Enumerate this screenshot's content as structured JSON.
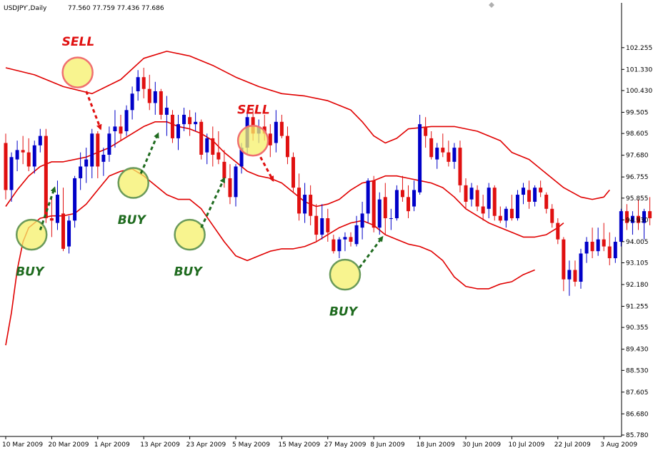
{
  "window": {
    "symbol_label": "USDJPY′,Daily",
    "ohlc_label": "77.560 77.759 77.436 77.686"
  },
  "colors": {
    "bull": "#0000c8",
    "bear": "#e01010",
    "band": "#e00000",
    "buy_text": "#1f6b1f",
    "sell_text": "#e01010",
    "highlight_fill": "#f5f06a",
    "highlight_buy_stroke": "#6a9a5a",
    "highlight_sell_stroke": "#f07070"
  },
  "chart_data": {
    "type": "candlestick",
    "indicator": "bollinger_bands",
    "ylim": [
      85.78,
      103.25
    ],
    "y_ticks": [
      "102.255",
      "101.330",
      "100.430",
      "99.505",
      "98.605",
      "97.680",
      "96.755",
      "95.855",
      "94.930",
      "94.005",
      "93.105",
      "92.180",
      "91.255",
      "90.355",
      "89.430",
      "88.530",
      "87.605",
      "86.680",
      "85.780"
    ],
    "x_ticks": [
      "10 Mar 2009",
      "20 Mar 2009",
      "1 Apr 2009",
      "13 Apr 2009",
      "23 Apr 2009",
      "5 May 2009",
      "15 May 2009",
      "27 May 2009",
      "8 Jun 2009",
      "18 Jun 2009",
      "30 Jun 2009",
      "10 Jul 2009",
      "22 Jul 2009",
      "3 Aug 2009"
    ],
    "x_tick_index": [
      0,
      8,
      16,
      24,
      32,
      40,
      48,
      56,
      64,
      72,
      80,
      88,
      96,
      104
    ],
    "candles": [
      [
        98.2,
        98.6,
        95.8,
        96.2
      ],
      [
        96.2,
        97.8,
        95.7,
        97.6
      ],
      [
        97.5,
        98.3,
        97.0,
        97.9
      ],
      [
        97.9,
        98.5,
        97.3,
        97.8
      ],
      [
        97.8,
        98.4,
        97.0,
        97.2
      ],
      [
        97.2,
        98.3,
        96.9,
        98.1
      ],
      [
        98.1,
        98.8,
        97.8,
        98.5
      ],
      [
        98.5,
        98.8,
        94.8,
        95.0
      ],
      [
        95.0,
        95.9,
        94.2,
        94.9
      ],
      [
        94.8,
        96.6,
        94.5,
        96.0
      ],
      [
        95.2,
        96.3,
        93.6,
        93.7
      ],
      [
        93.8,
        95.1,
        93.5,
        94.9
      ],
      [
        94.9,
        96.8,
        94.6,
        96.7
      ],
      [
        96.7,
        97.8,
        96.2,
        97.2
      ],
      [
        97.2,
        98.0,
        96.5,
        97.5
      ],
      [
        97.2,
        98.8,
        96.7,
        98.6
      ],
      [
        98.6,
        98.7,
        96.7,
        97.2
      ],
      [
        97.4,
        98.0,
        96.8,
        97.7
      ],
      [
        97.7,
        98.9,
        97.4,
        98.6
      ],
      [
        98.7,
        99.6,
        98.0,
        98.9
      ],
      [
        98.9,
        99.4,
        98.3,
        98.6
      ],
      [
        98.7,
        99.8,
        98.5,
        99.6
      ],
      [
        99.6,
        100.6,
        99.2,
        100.3
      ],
      [
        100.4,
        101.3,
        100.0,
        101.0
      ],
      [
        101.0,
        101.4,
        100.1,
        100.5
      ],
      [
        100.5,
        101.1,
        99.6,
        99.9
      ],
      [
        99.9,
        100.8,
        99.4,
        100.4
      ],
      [
        100.4,
        100.5,
        99.2,
        99.4
      ],
      [
        99.4,
        100.2,
        98.5,
        99.7
      ],
      [
        99.4,
        99.6,
        98.2,
        98.4
      ],
      [
        98.4,
        99.4,
        97.9,
        99.0
      ],
      [
        99.0,
        99.7,
        98.7,
        99.4
      ],
      [
        99.3,
        99.6,
        98.5,
        99.0
      ],
      [
        99.0,
        99.5,
        98.7,
        99.1
      ],
      [
        99.1,
        99.2,
        97.5,
        97.7
      ],
      [
        97.8,
        98.6,
        97.3,
        98.4
      ],
      [
        98.4,
        98.9,
        97.2,
        97.7
      ],
      [
        97.8,
        98.7,
        97.3,
        97.5
      ],
      [
        97.4,
        97.9,
        96.3,
        96.7
      ],
      [
        96.7,
        97.3,
        95.6,
        95.9
      ],
      [
        95.9,
        97.3,
        95.5,
        97.2
      ],
      [
        97.2,
        98.2,
        96.9,
        98.0
      ],
      [
        98.0,
        99.5,
        97.7,
        99.3
      ],
      [
        99.3,
        99.6,
        98.3,
        98.6
      ],
      [
        98.6,
        99.2,
        98.2,
        98.9
      ],
      [
        98.9,
        99.4,
        98.3,
        98.6
      ],
      [
        98.6,
        99.0,
        97.6,
        98.1
      ],
      [
        98.2,
        99.6,
        97.8,
        99.1
      ],
      [
        99.1,
        99.4,
        98.4,
        98.5
      ],
      [
        98.5,
        98.9,
        97.3,
        97.6
      ],
      [
        97.6,
        97.8,
        96.1,
        96.3
      ],
      [
        96.3,
        96.9,
        94.9,
        95.2
      ],
      [
        95.2,
        96.5,
        94.8,
        96.0
      ],
      [
        96.0,
        96.4,
        94.7,
        95.1
      ],
      [
        95.1,
        95.6,
        94.0,
        94.3
      ],
      [
        94.3,
        95.6,
        94.1,
        95.0
      ],
      [
        95.0,
        95.4,
        94.0,
        94.4
      ],
      [
        94.1,
        94.3,
        93.5,
        93.6
      ],
      [
        93.6,
        94.2,
        93.3,
        94.1
      ],
      [
        94.1,
        94.4,
        93.6,
        94.2
      ],
      [
        94.2,
        94.4,
        93.8,
        94.0
      ],
      [
        93.9,
        95.1,
        93.8,
        94.7
      ],
      [
        94.6,
        95.7,
        94.1,
        95.2
      ],
      [
        95.2,
        96.7,
        94.8,
        96.6
      ],
      [
        96.6,
        96.8,
        94.4,
        94.6
      ],
      [
        94.6,
        96.1,
        94.3,
        95.8
      ],
      [
        95.9,
        96.5,
        94.3,
        95.0
      ],
      [
        95.0,
        95.4,
        94.5,
        95.0
      ],
      [
        95.0,
        96.4,
        94.9,
        96.2
      ],
      [
        96.2,
        96.8,
        95.7,
        95.9
      ],
      [
        95.9,
        96.4,
        95.0,
        95.3
      ],
      [
        95.5,
        96.6,
        95.3,
        96.2
      ],
      [
        96.1,
        99.4,
        96.0,
        99.0
      ],
      [
        98.9,
        99.3,
        98.0,
        98.5
      ],
      [
        98.4,
        98.7,
        97.5,
        97.6
      ],
      [
        97.5,
        98.2,
        97.1,
        98.0
      ],
      [
        98.0,
        98.6,
        97.6,
        97.8
      ],
      [
        97.8,
        98.3,
        97.2,
        97.4
      ],
      [
        97.4,
        98.2,
        97.1,
        98.0
      ],
      [
        98.0,
        98.3,
        96.1,
        96.4
      ],
      [
        96.4,
        96.7,
        95.4,
        95.7
      ],
      [
        95.8,
        96.5,
        95.5,
        96.3
      ],
      [
        96.2,
        96.4,
        95.3,
        95.5
      ],
      [
        95.5,
        96.0,
        94.9,
        95.2
      ],
      [
        95.4,
        96.5,
        95.0,
        96.3
      ],
      [
        96.3,
        96.4,
        94.9,
        95.1
      ],
      [
        95.1,
        95.5,
        94.8,
        94.9
      ],
      [
        94.9,
        95.5,
        94.6,
        95.4
      ],
      [
        95.4,
        96.0,
        94.9,
        95.0
      ],
      [
        95.0,
        96.2,
        94.9,
        96.0
      ],
      [
        96.0,
        96.5,
        95.6,
        96.3
      ],
      [
        96.2,
        96.6,
        95.4,
        95.7
      ],
      [
        95.7,
        96.4,
        95.5,
        96.3
      ],
      [
        96.3,
        96.6,
        95.9,
        96.1
      ],
      [
        96.0,
        96.1,
        95.2,
        95.4
      ],
      [
        95.4,
        95.6,
        94.6,
        94.8
      ],
      [
        94.8,
        95.0,
        93.9,
        94.1
      ],
      [
        94.1,
        94.2,
        91.9,
        92.4
      ],
      [
        92.4,
        93.2,
        91.7,
        92.8
      ],
      [
        92.8,
        93.2,
        92.1,
        92.3
      ],
      [
        92.3,
        93.7,
        92.0,
        93.5
      ],
      [
        93.5,
        94.2,
        93.1,
        94.0
      ],
      [
        94.0,
        94.6,
        93.3,
        93.6
      ],
      [
        93.6,
        94.6,
        93.4,
        94.1
      ],
      [
        94.1,
        94.8,
        93.6,
        93.8
      ],
      [
        93.8,
        94.4,
        93.0,
        93.3
      ],
      [
        93.3,
        94.2,
        93.1,
        94.0
      ],
      [
        94.0,
        95.4,
        93.8,
        95.3
      ],
      [
        95.3,
        95.6,
        94.5,
        94.8
      ],
      [
        94.8,
        95.3,
        94.3,
        95.1
      ],
      [
        95.1,
        95.8,
        94.5,
        94.8
      ],
      [
        94.8,
        95.4,
        94.1,
        95.3
      ],
      [
        95.3,
        95.9,
        94.7,
        95.0
      ],
      [
        95.0,
        95.6,
        94.5,
        95.3
      ],
      [
        95.3,
        95.7,
        94.9,
        95.1
      ],
      [
        95.1,
        95.6,
        94.6,
        95.0
      ],
      [
        95.0,
        95.6,
        94.5,
        95.2
      ],
      [
        95.2,
        97.6,
        95.0,
        97.4
      ]
    ],
    "band_upper": [
      [
        0,
        101.4
      ],
      [
        5,
        101.1
      ],
      [
        10,
        100.6
      ],
      [
        15,
        100.3
      ],
      [
        20,
        100.9
      ],
      [
        24,
        101.8
      ],
      [
        28,
        102.1
      ],
      [
        32,
        101.9
      ],
      [
        36,
        101.5
      ],
      [
        40,
        101.0
      ],
      [
        44,
        100.6
      ],
      [
        48,
        100.3
      ],
      [
        52,
        100.2
      ],
      [
        56,
        100.0
      ],
      [
        60,
        99.6
      ],
      [
        62,
        99.1
      ],
      [
        64,
        98.5
      ],
      [
        66,
        98.2
      ],
      [
        68,
        98.4
      ],
      [
        70,
        98.8
      ],
      [
        74,
        98.9
      ],
      [
        78,
        98.9
      ],
      [
        82,
        98.7
      ],
      [
        86,
        98.3
      ],
      [
        88,
        97.8
      ],
      [
        91,
        97.5
      ],
      [
        94,
        96.9
      ],
      [
        97,
        96.3
      ],
      [
        100,
        95.9
      ],
      [
        102,
        95.8
      ],
      [
        104,
        95.9
      ],
      [
        105,
        96.2
      ]
    ],
    "band_middle": [
      [
        0,
        95.5
      ],
      [
        2,
        96.2
      ],
      [
        4,
        96.8
      ],
      [
        6,
        97.2
      ],
      [
        8,
        97.4
      ],
      [
        10,
        97.4
      ],
      [
        14,
        97.6
      ],
      [
        18,
        98.0
      ],
      [
        20,
        98.3
      ],
      [
        22,
        98.6
      ],
      [
        24,
        98.9
      ],
      [
        26,
        99.1
      ],
      [
        28,
        99.1
      ],
      [
        30,
        98.9
      ],
      [
        32,
        98.8
      ],
      [
        34,
        98.6
      ],
      [
        36,
        98.3
      ],
      [
        38,
        97.8
      ],
      [
        40,
        97.4
      ],
      [
        42,
        97.0
      ],
      [
        44,
        96.8
      ],
      [
        46,
        96.7
      ],
      [
        48,
        96.5
      ],
      [
        50,
        96.1
      ],
      [
        52,
        95.7
      ],
      [
        54,
        95.5
      ],
      [
        56,
        95.6
      ],
      [
        58,
        95.8
      ],
      [
        60,
        96.2
      ],
      [
        62,
        96.5
      ],
      [
        64,
        96.6
      ],
      [
        66,
        96.8
      ],
      [
        68,
        96.8
      ],
      [
        70,
        96.7
      ],
      [
        72,
        96.6
      ],
      [
        74,
        96.5
      ],
      [
        76,
        96.3
      ],
      [
        78,
        95.9
      ],
      [
        80,
        95.4
      ],
      [
        82,
        95.1
      ],
      [
        84,
        94.8
      ],
      [
        86,
        94.6
      ],
      [
        88,
        94.4
      ],
      [
        90,
        94.2
      ],
      [
        92,
        94.2
      ],
      [
        94,
        94.3
      ],
      [
        96,
        94.6
      ],
      [
        97,
        94.8
      ]
    ],
    "band_lower": [
      [
        0,
        89.6
      ],
      [
        1,
        91.0
      ],
      [
        2,
        92.8
      ],
      [
        3,
        94.0
      ],
      [
        4,
        94.6
      ],
      [
        5,
        94.8
      ],
      [
        6,
        95.0
      ],
      [
        8,
        95.1
      ],
      [
        10,
        95.1
      ],
      [
        12,
        95.2
      ],
      [
        14,
        95.6
      ],
      [
        16,
        96.2
      ],
      [
        18,
        96.8
      ],
      [
        20,
        97.0
      ],
      [
        22,
        97.1
      ],
      [
        24,
        96.8
      ],
      [
        26,
        96.4
      ],
      [
        28,
        96.0
      ],
      [
        30,
        95.8
      ],
      [
        32,
        95.8
      ],
      [
        34,
        95.4
      ],
      [
        36,
        94.7
      ],
      [
        38,
        94.0
      ],
      [
        40,
        93.4
      ],
      [
        42,
        93.2
      ],
      [
        44,
        93.4
      ],
      [
        46,
        93.6
      ],
      [
        48,
        93.7
      ],
      [
        50,
        93.7
      ],
      [
        52,
        93.8
      ],
      [
        54,
        94.0
      ],
      [
        56,
        94.3
      ],
      [
        58,
        94.6
      ],
      [
        60,
        94.8
      ],
      [
        62,
        94.9
      ],
      [
        64,
        94.7
      ],
      [
        66,
        94.3
      ],
      [
        68,
        94.1
      ],
      [
        70,
        93.9
      ],
      [
        72,
        93.8
      ],
      [
        74,
        93.6
      ],
      [
        76,
        93.2
      ],
      [
        78,
        92.5
      ],
      [
        80,
        92.1
      ],
      [
        82,
        92.0
      ],
      [
        84,
        92.0
      ],
      [
        86,
        92.2
      ],
      [
        88,
        92.3
      ],
      [
        90,
        92.6
      ],
      [
        92,
        92.8
      ]
    ],
    "signals": [
      {
        "type": "BUY",
        "idx": 4.5,
        "price": 94.3,
        "label_offset": 1.2,
        "arrow_from": [
          6,
          94.5
        ],
        "arrow_to": [
          8.5,
          96.3
        ]
      },
      {
        "type": "SELL",
        "idx": 12.5,
        "price": 101.2,
        "label_offset": -1.2,
        "arrow_from": [
          14,
          100.4
        ],
        "arrow_to": [
          16.5,
          98.8
        ]
      },
      {
        "type": "BUY",
        "idx": 22.2,
        "price": 96.5,
        "label_offset": 1.2,
        "arrow_from": [
          23.5,
          96.9
        ],
        "arrow_to": [
          26.5,
          98.6
        ]
      },
      {
        "type": "BUY",
        "idx": 32,
        "price": 94.3,
        "label_offset": 1.2,
        "arrow_from": [
          34,
          94.6
        ],
        "arrow_to": [
          38,
          96.7
        ]
      },
      {
        "type": "SELL",
        "idx": 43,
        "price": 98.3,
        "label_offset": -1.2,
        "arrow_from": [
          44.3,
          97.6
        ],
        "arrow_to": [
          46.5,
          96.6
        ]
      },
      {
        "type": "BUY",
        "idx": 59,
        "price": 92.6,
        "label_offset": 1.2,
        "arrow_from": [
          61.5,
          92.9
        ],
        "arrow_to": [
          65.5,
          94.2
        ]
      }
    ]
  }
}
